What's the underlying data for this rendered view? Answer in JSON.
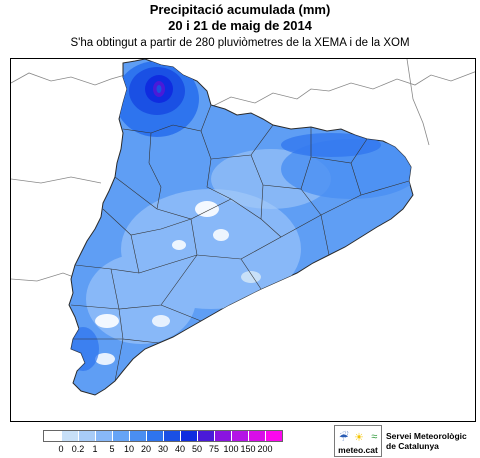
{
  "header": {
    "title_line1": "Precipitació acumulada (mm)",
    "title_line2": "20 i 21 de maig de 2014",
    "subtitle": "S'ha obtingut a partir de 280 pluviòmetres de la XEMA i de la XOM"
  },
  "legend": {
    "labels": [
      "0",
      "0.2",
      "1",
      "5",
      "10",
      "20",
      "30",
      "40",
      "50",
      "75",
      "100",
      "150",
      "200"
    ],
    "colors": [
      "#ffffff",
      "#c8e0f8",
      "#a8ccf8",
      "#88b8f8",
      "#66a4f6",
      "#4a8ef2",
      "#2e74ee",
      "#1a50e4",
      "#0f2ce0",
      "#4a1ad8",
      "#8a14e0",
      "#b414e6",
      "#d80ee8",
      "#fc08ee"
    ]
  },
  "map": {
    "region": "Catalunya",
    "base_color": "#5f9ef4",
    "max_color": "#1f4be6"
  },
  "logo": {
    "name": "meteo.cat",
    "service_line1": "Servei Meteorològic",
    "service_line2": "de Catalunya",
    "icons": [
      "rain-icon",
      "sun-icon",
      "wind-icon"
    ],
    "icon_colors": [
      "#2a5cb4",
      "#f5c400",
      "#2e9a3a"
    ]
  }
}
